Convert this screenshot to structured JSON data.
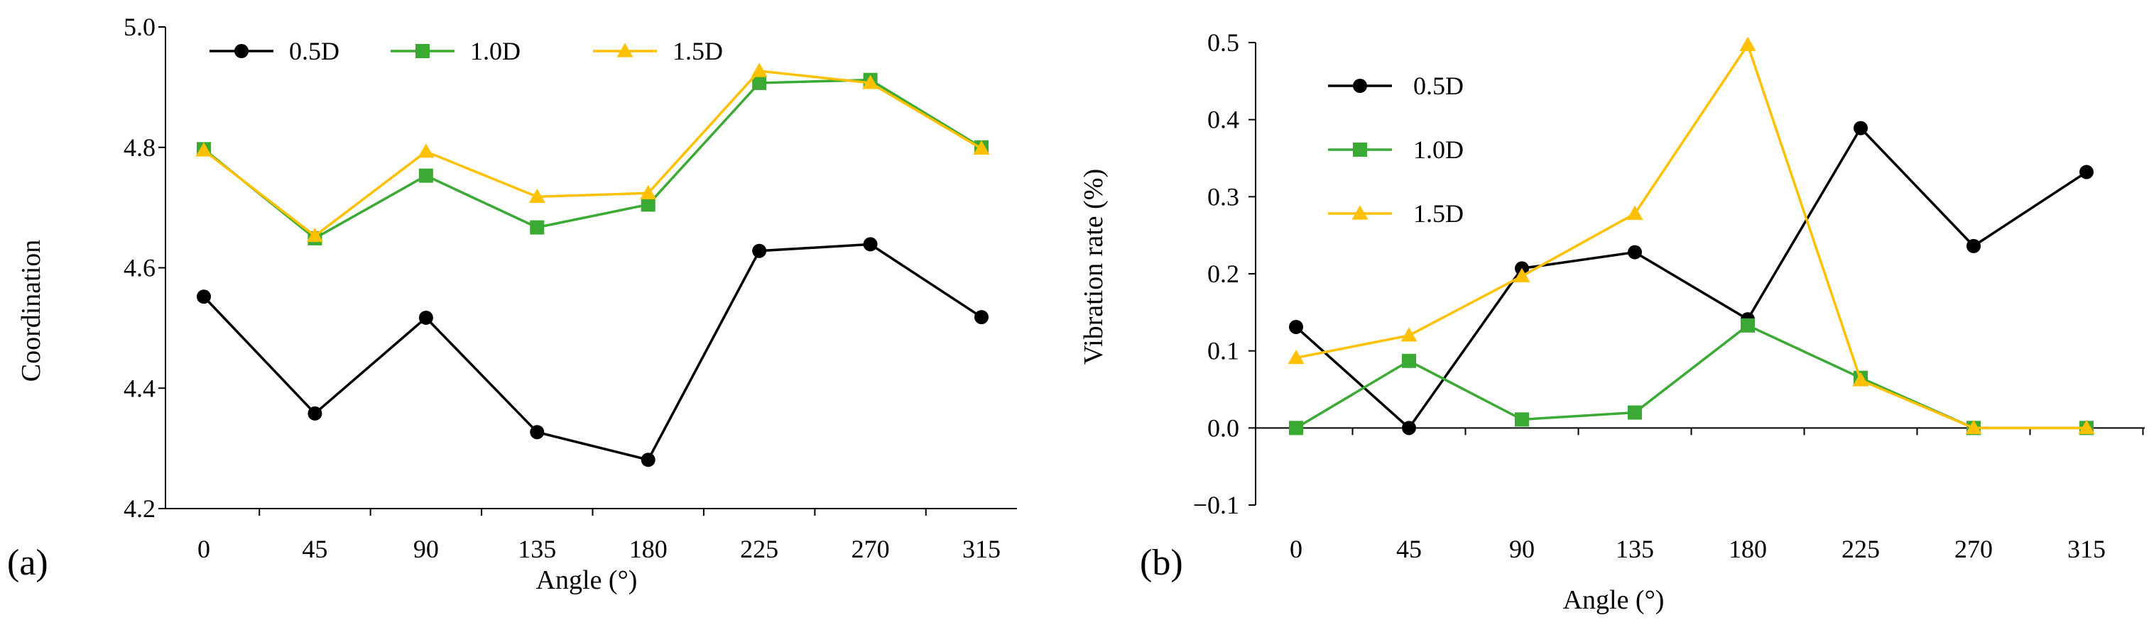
{
  "chart_data": [
    {
      "type": "line",
      "panel_label": "(a)",
      "categories": [
        "0",
        "45",
        "90",
        "135",
        "180",
        "225",
        "270",
        "315"
      ],
      "xlabel": "Angle (°)",
      "ylabel": "Coordination",
      "ylim": [
        4.2,
        5.0
      ],
      "yticks": [
        "4.2",
        "4.4",
        "4.6",
        "4.8",
        "5.0"
      ],
      "legend_position": "top-left, horizontal",
      "grid": false,
      "series": [
        {
          "name": "0.5D",
          "color": "#000000",
          "marker": "circle",
          "values": [
            4.552,
            4.358,
            4.517,
            4.327,
            4.281,
            4.628,
            4.639,
            4.518
          ]
        },
        {
          "name": "1.0D",
          "color": "#3aaa35",
          "marker": "square",
          "values": [
            4.797,
            4.649,
            4.753,
            4.667,
            4.705,
            4.907,
            4.912,
            4.8
          ]
        },
        {
          "name": "1.5D",
          "color": "#ffc000",
          "marker": "triangle",
          "values": [
            4.795,
            4.653,
            4.793,
            4.718,
            4.724,
            4.927,
            4.907,
            4.798
          ]
        }
      ]
    },
    {
      "type": "line",
      "panel_label": "(b)",
      "categories": [
        "0",
        "45",
        "90",
        "135",
        "180",
        "225",
        "270",
        "315"
      ],
      "xlabel": "Angle (°)",
      "ylabel": "Vibration rate (%)",
      "ylim": [
        -0.1,
        0.5
      ],
      "yticks": [
        "−0.1",
        "0.0",
        "0.1",
        "0.2",
        "0.3",
        "0.4",
        "0.5"
      ],
      "legend_position": "top-left, vertical",
      "grid": false,
      "series": [
        {
          "name": "0.5D",
          "color": "#000000",
          "marker": "circle",
          "values": [
            0.131,
            0.0,
            0.207,
            0.228,
            0.141,
            0.389,
            0.236,
            0.332
          ]
        },
        {
          "name": "1.0D",
          "color": "#3aaa35",
          "marker": "square",
          "values": [
            0.0,
            0.087,
            0.011,
            0.02,
            0.133,
            0.065,
            0.0,
            0.0
          ]
        },
        {
          "name": "1.5D",
          "color": "#ffc000",
          "marker": "triangle",
          "values": [
            0.091,
            0.12,
            0.197,
            0.278,
            0.497,
            0.062,
            0.0,
            0.0
          ]
        }
      ]
    }
  ]
}
